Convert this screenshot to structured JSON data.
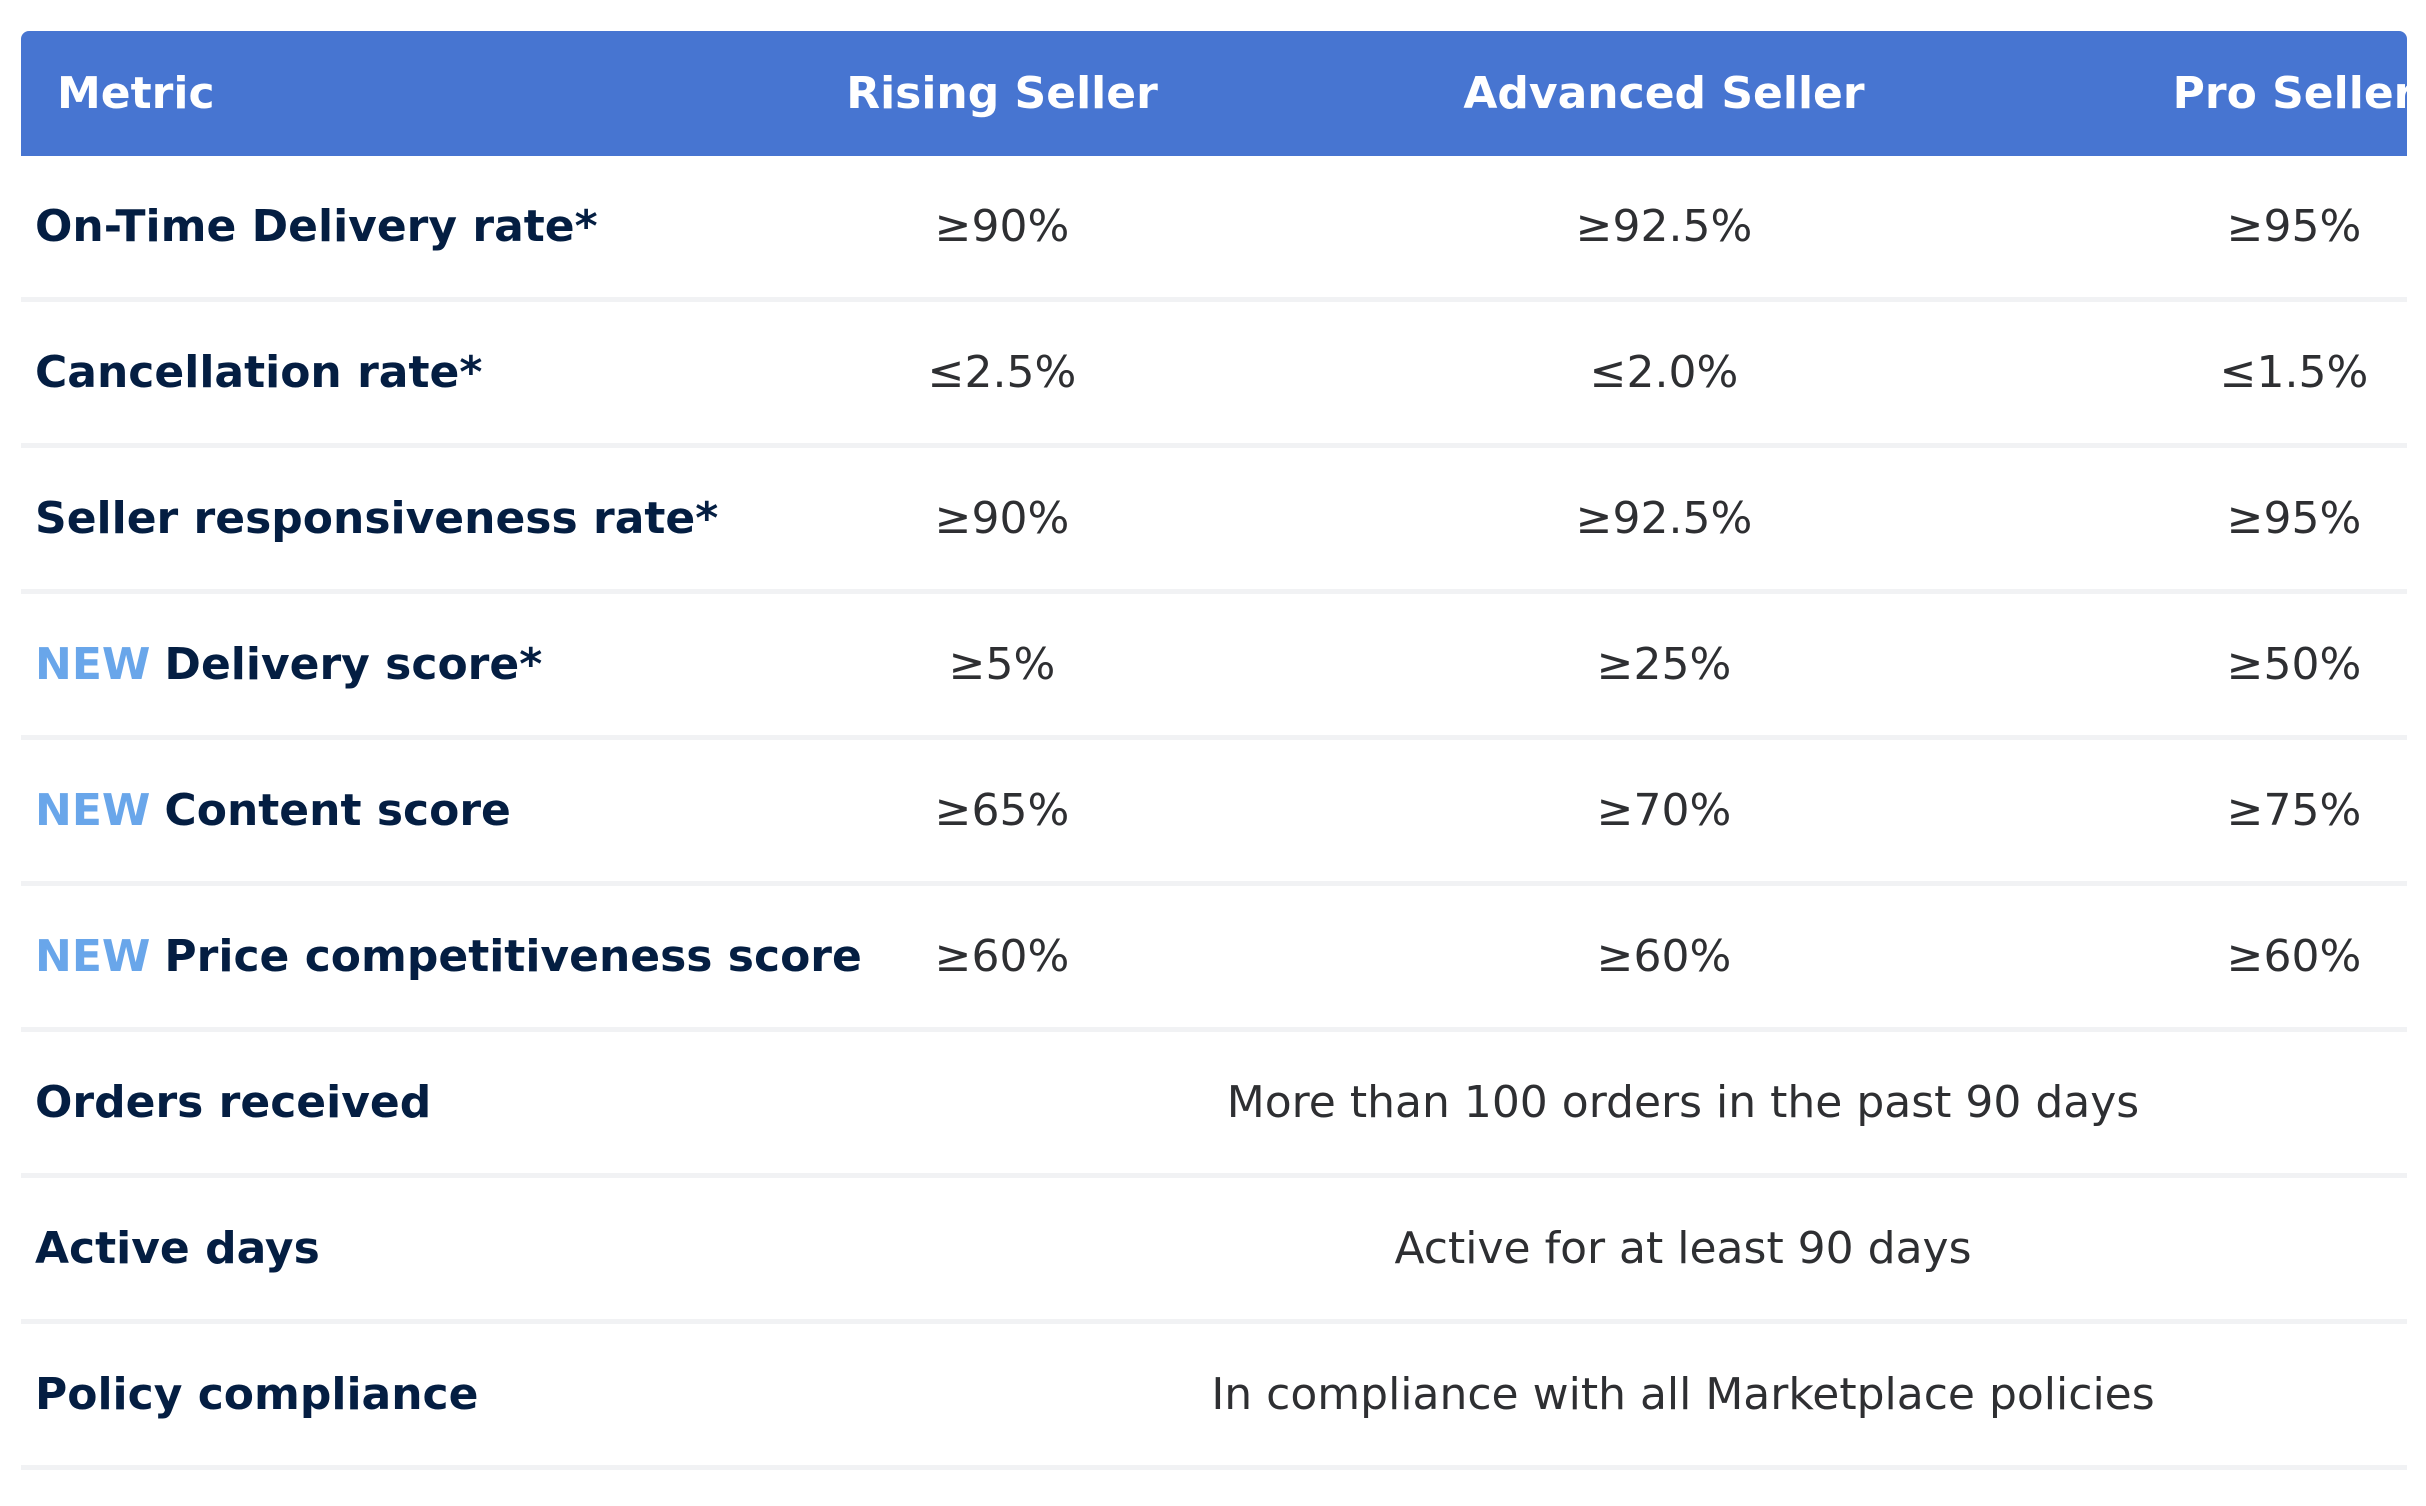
{
  "header": {
    "metric": "Metric",
    "rising": "Rising Seller",
    "advanced": "Advanced Seller",
    "pro": "Pro Seller"
  },
  "new_tag": "NEW",
  "rows": [
    {
      "metric": "On-Time Delivery rate*",
      "rising": "≥90%",
      "advanced": "≥92.5%",
      "pro": "≥95%"
    },
    {
      "metric": "Cancellation rate*",
      "rising": "≤2.5%",
      "advanced": "≤2.0%",
      "pro": "≤1.5%"
    },
    {
      "metric": "Seller responsiveness rate*",
      "rising": "≥90%",
      "advanced": "≥92.5%",
      "pro": "≥95%"
    },
    {
      "metric": "Delivery score*",
      "rising": "≥5%",
      "advanced": "≥25%",
      "pro": "≥50%"
    },
    {
      "metric": "Content score",
      "rising": "≥65%",
      "advanced": "≥70%",
      "pro": "≥75%"
    },
    {
      "metric": "Price competitiveness score",
      "rising": "≥60%",
      "advanced": "≥60%",
      "pro": "≥60%"
    }
  ],
  "span_rows": [
    {
      "metric": "Orders received",
      "value": "More than 100 orders in the past 90 days"
    },
    {
      "metric": "Active days",
      "value": "Active for at least 90 days"
    },
    {
      "metric": "Policy compliance",
      "value": "In compliance with all Marketplace policies"
    }
  ],
  "colors": {
    "header_bg": "#4775d1",
    "header_text": "#ffffff",
    "metric_text": "#041e42",
    "new_tag": "#69a6ea",
    "value_text": "#2e2f32"
  }
}
